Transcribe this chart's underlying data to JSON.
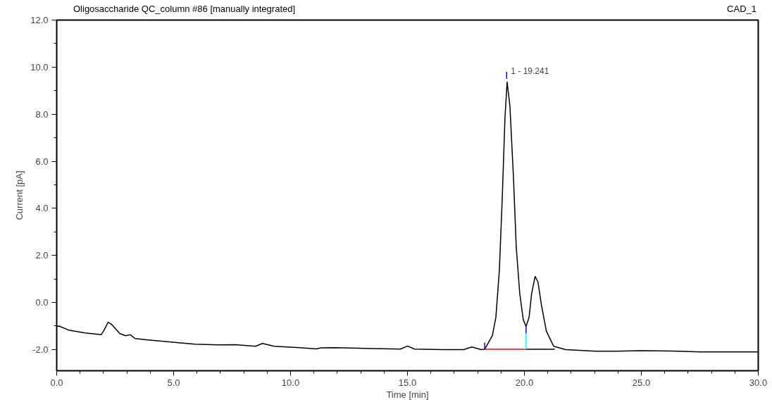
{
  "chart_data": {
    "type": "line",
    "title": "Oligosaccharide QC_column #86 [manually integrated]",
    "xlabel": "Time [min]",
    "ylabel": "Current [pA]",
    "annotations": [
      "CAD_1",
      {
        "text": "1 - 19.241",
        "x": 19.241,
        "y": 9.37
      }
    ],
    "xlim": [
      0,
      30
    ],
    "ylim": [
      -2.9,
      12.0
    ],
    "xticks": [
      {
        "value": 0,
        "label": "0.0"
      },
      {
        "value": 5,
        "label": "5.0"
      },
      {
        "value": 10,
        "label": "10.0"
      },
      {
        "value": 15,
        "label": "15.0"
      },
      {
        "value": 20,
        "label": "20.0"
      },
      {
        "value": 25,
        "label": "25.0"
      },
      {
        "value": 30,
        "label": "30.0"
      }
    ],
    "yticks": [
      {
        "value": -2,
        "label": "-2.0"
      },
      {
        "value": 0,
        "label": "0.0"
      },
      {
        "value": 2,
        "label": "2.0"
      },
      {
        "value": 4,
        "label": "4.0"
      },
      {
        "value": 6,
        "label": "6.0"
      },
      {
        "value": 8,
        "label": "8.0"
      },
      {
        "value": 10,
        "label": "10.0"
      },
      {
        "value": 12,
        "label": "12.0"
      }
    ],
    "grid": false,
    "line_style": "solid",
    "marker": "none",
    "series": [
      {
        "color": "#000000",
        "x": [
          0,
          0.1,
          0.5,
          1.2,
          1.9,
          2.0,
          2.2,
          2.35,
          2.7,
          2.95,
          3.15,
          3.35,
          3.9,
          4.9,
          5.9,
          6.9,
          7.65,
          8.5,
          8.8,
          9.3,
          10.4,
          11.1,
          11.3,
          11.9,
          13.5,
          14.7,
          15.0,
          15.3,
          16.5,
          17.4,
          17.75,
          18.15,
          18.3,
          18.63,
          18.78,
          18.93,
          19.05,
          19.17,
          19.26,
          19.38,
          19.53,
          19.65,
          19.8,
          19.95,
          20.07,
          20.2,
          20.31,
          20.46,
          20.58,
          20.73,
          20.94,
          21.25,
          21.76,
          23.05,
          23.95,
          24.95,
          26.3,
          27.5,
          28.8,
          30.0
        ],
        "values": [
          -1.02,
          -1.0,
          -1.17,
          -1.29,
          -1.37,
          -1.22,
          -0.84,
          -0.93,
          -1.32,
          -1.41,
          -1.37,
          -1.53,
          -1.59,
          -1.68,
          -1.77,
          -1.8,
          -1.79,
          -1.86,
          -1.74,
          -1.86,
          -1.92,
          -1.97,
          -1.93,
          -1.92,
          -1.96,
          -1.98,
          -1.85,
          -1.98,
          -2.0,
          -2.0,
          -1.89,
          -2.0,
          -1.99,
          -1.41,
          -0.63,
          1.38,
          4.37,
          7.87,
          9.37,
          8.35,
          5.36,
          2.37,
          0.39,
          -0.72,
          -1.02,
          -0.63,
          0.39,
          1.11,
          0.87,
          -0.12,
          -1.22,
          -1.86,
          -2.0,
          -2.07,
          -2.07,
          -2.05,
          -2.06,
          -2.1,
          -2.1,
          -2.1
        ]
      },
      {
        "color": "#ff0000",
        "x": [
          18.3,
          20.07
        ],
        "values": [
          -1.99,
          -1.99
        ]
      },
      {
        "color": "#000000",
        "x": [
          20.07,
          21.3
        ],
        "values": [
          -1.99,
          -1.99
        ]
      },
      {
        "color": "#00ffff",
        "x": [
          20.07,
          20.07
        ],
        "values": [
          -1.99,
          -1.3
        ]
      },
      {
        "color": "#0000ff",
        "x": [
          20.07,
          20.07
        ],
        "values": [
          -1.3,
          -1.02
        ]
      },
      {
        "color": "#0000ff",
        "x": [
          18.3,
          18.3
        ],
        "values": [
          -1.99,
          -1.7
        ]
      },
      {
        "color": "#0000ff",
        "x": [
          19.241,
          19.241
        ],
        "values": [
          9.5,
          9.8
        ]
      }
    ]
  }
}
